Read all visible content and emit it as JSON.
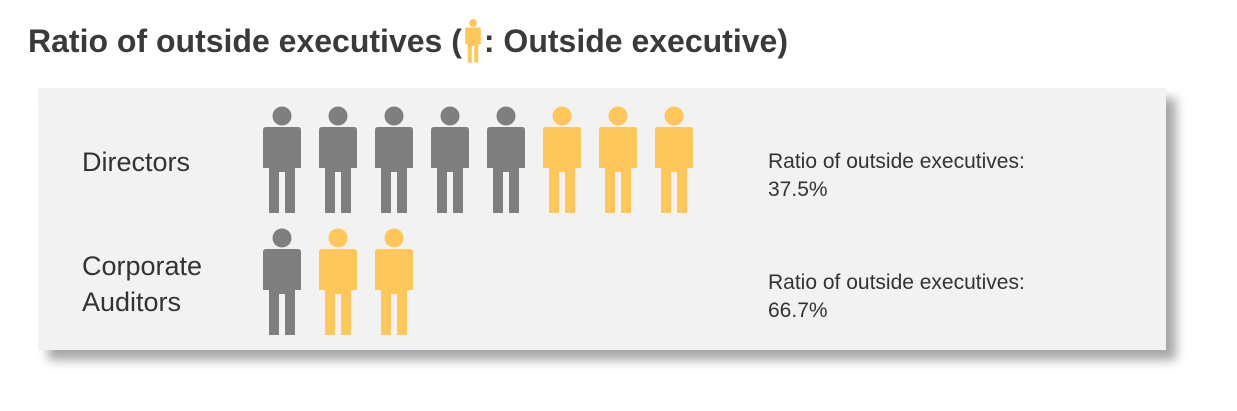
{
  "title": {
    "prefix": "Ratio of outside executives (",
    "suffix": ": Outside executive)"
  },
  "colors": {
    "inside": "#7f7f7f",
    "outside": "#ffc75a",
    "panel": "#f2f2f2"
  },
  "chart_data": {
    "type": "pictograph",
    "icon": "person-icon",
    "rows": [
      {
        "label": "Directors",
        "inside_count": 5,
        "outside_count": 3,
        "ratio_label": "Ratio of outside executives:",
        "ratio_value": "37.5%"
      },
      {
        "label": "Corporate\nAuditors",
        "inside_count": 1,
        "outside_count": 2,
        "ratio_label": "Ratio of outside executives:",
        "ratio_value": "66.7%"
      }
    ]
  }
}
